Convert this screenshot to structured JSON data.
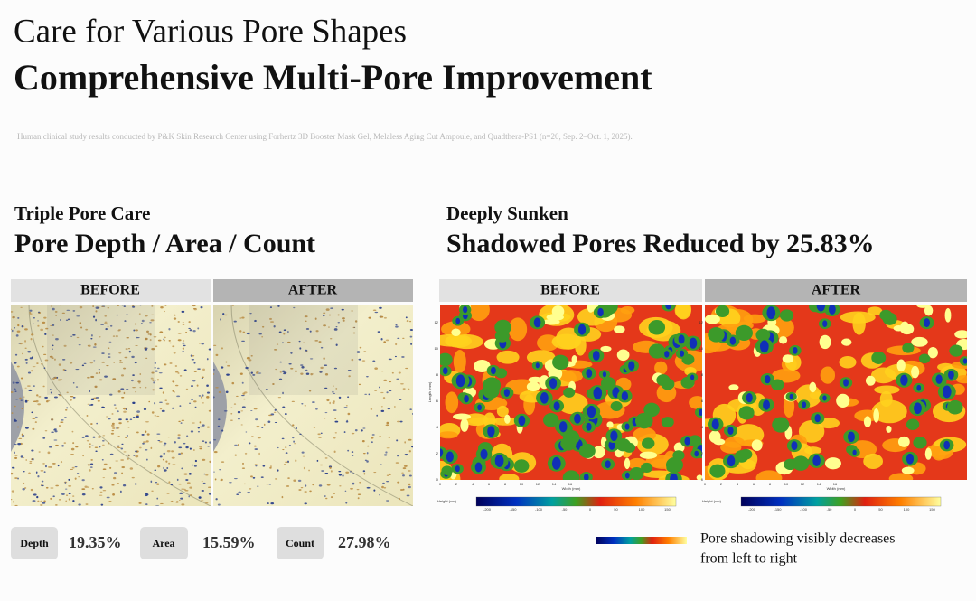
{
  "header": {
    "title": "Care for Various Pore Shapes",
    "subtitle": "Comprehensive Multi-Pore Improvement",
    "footnote": "Human clinical study results conducted by P&K Skin Research Center using Forhertz 3D Booster Mask Gel, Melaless Aging Cut Ampoule, and Quadthera-PS1 (n=20, Sep. 2–Oct. 1, 2025)."
  },
  "left": {
    "kicker": "Triple Pore Care",
    "heading": "Pore Depth / Area / Count",
    "before_label": "BEFORE",
    "after_label": "AFTER",
    "stats": [
      {
        "label": "Depth",
        "value": "19.35%"
      },
      {
        "label": "Area",
        "value": "15.59%"
      },
      {
        "label": "Count",
        "value": "27.98%"
      }
    ]
  },
  "right": {
    "kicker": "Deeply Sunken",
    "heading": "Shadowed Pores Reduced by  25.83%",
    "before_label": "BEFORE",
    "after_label": "AFTER",
    "map_axes": {
      "y_label": "Length (mm)",
      "x_label": "Width (mm)",
      "yticks": [
        "0",
        "2",
        "4",
        "6",
        "8",
        "10",
        "12"
      ],
      "xticks": [
        "0",
        "2",
        "4",
        "6",
        "8",
        "10",
        "12",
        "14",
        "16"
      ],
      "colorbar_label": "Height (um)",
      "colorbar_ticks": [
        "-200",
        "-150",
        "-100",
        "-50",
        "0",
        "50",
        "100",
        "150"
      ]
    },
    "legend": [
      "Pore shadowing visibly decreases",
      "from left to right"
    ]
  }
}
